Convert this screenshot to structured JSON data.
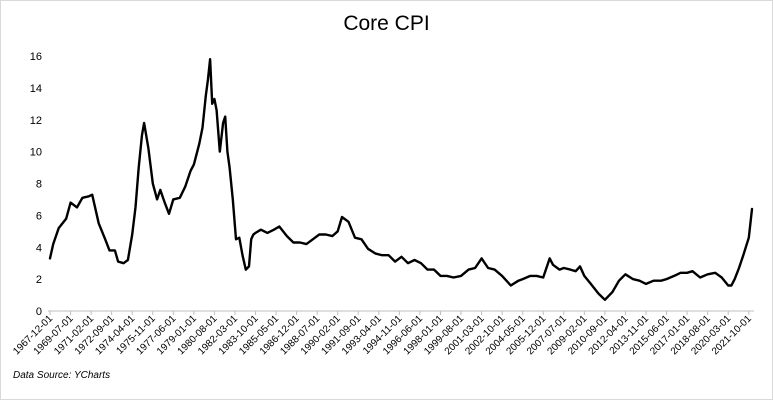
{
  "chart_data": {
    "type": "line",
    "title": "Core CPI",
    "source_note": "Data Source: YCharts",
    "xlabel": "",
    "ylabel": "",
    "ylim": [
      0,
      16
    ],
    "yticks": [
      0,
      2,
      4,
      6,
      8,
      10,
      12,
      14,
      16
    ],
    "grid": false,
    "legend": "none",
    "line_color": "#000000",
    "x_tick_labels": [
      "1967-12-01",
      "1969-07-01",
      "1971-02-01",
      "1972-09-01",
      "1974-04-01",
      "1975-11-01",
      "1977-06-01",
      "1979-01-01",
      "1980-08-01",
      "1982-03-01",
      "1983-10-01",
      "1985-05-01",
      "1986-12-01",
      "1988-07-01",
      "1990-02-01",
      "1991-09-01",
      "1993-04-01",
      "1994-11-01",
      "1996-06-01",
      "1998-01-01",
      "1999-08-01",
      "2001-03-01",
      "2002-10-01",
      "2004-05-01",
      "2005-12-01",
      "2007-07-01",
      "2009-02-01",
      "2010-09-01",
      "2012-04-01",
      "2013-11-01",
      "2015-06-01",
      "2017-01-01",
      "2018-08-01",
      "2020-03-01",
      "2021-10-01"
    ],
    "series": [
      {
        "x": [
          "1967-12-01",
          "1968-03-01",
          "1968-08-01",
          "1969-03-01",
          "1969-07-01",
          "1970-01-01",
          "1970-06-01",
          "1970-12-01",
          "1971-03-01",
          "1971-09-01",
          "1972-03-01",
          "1972-07-01",
          "1972-12-01",
          "1973-03-01",
          "1973-08-01",
          "1973-12-01",
          "1974-04-01",
          "1974-07-01",
          "1974-10-01",
          "1975-01-01",
          "1975-03-01",
          "1975-07-01",
          "1975-11-01",
          "1976-03-01",
          "1976-06-01",
          "1976-10-01",
          "1977-02-01",
          "1977-06-01",
          "1977-12-01",
          "1978-05-01",
          "1978-10-01",
          "1979-01-01",
          "1979-06-01",
          "1979-09-01",
          "1979-12-01",
          "1980-02-01",
          "1980-04-01",
          "1980-06-01",
          "1980-08-01",
          "1980-10-01",
          "1981-01-01",
          "1981-04-01",
          "1981-06-01",
          "1981-08-01",
          "1981-10-01",
          "1982-01-01",
          "1982-04-01",
          "1982-07-01",
          "1982-10-01",
          "1983-01-01",
          "1983-04-01",
          "1983-06-01",
          "1983-08-01",
          "1983-10-01",
          "1984-03-01",
          "1984-09-01",
          "1985-03-01",
          "1985-08-01",
          "1986-03-01",
          "1986-09-01",
          "1987-03-01",
          "1987-09-01",
          "1988-03-01",
          "1988-09-01",
          "1989-03-01",
          "1989-09-01",
          "1990-02-01",
          "1990-06-01",
          "1990-12-01",
          "1991-06-01",
          "1991-12-01",
          "1992-06-01",
          "1993-01-01",
          "1993-07-01",
          "1994-01-01",
          "1994-07-01",
          "1995-01-01",
          "1995-07-01",
          "1996-01-01",
          "1996-07-01",
          "1997-01-01",
          "1997-07-01",
          "1998-01-01",
          "1998-07-01",
          "1999-01-01",
          "1999-08-01",
          "2000-03-01",
          "2000-09-01",
          "2001-03-01",
          "2001-09-01",
          "2002-03-01",
          "2002-10-01",
          "2003-06-01",
          "2004-01-01",
          "2004-05-01",
          "2004-12-01",
          "2005-06-01",
          "2005-12-01",
          "2006-06-01",
          "2006-09-01",
          "2007-03-01",
          "2007-07-01",
          "2008-01-01",
          "2008-06-01",
          "2008-10-01",
          "2009-02-01",
          "2009-08-01",
          "2010-03-01",
          "2010-09-01",
          "2011-04-01",
          "2011-10-01",
          "2012-04-01",
          "2012-11-01",
          "2013-05-01",
          "2013-11-01",
          "2014-06-01",
          "2015-01-01",
          "2015-06-01",
          "2016-01-01",
          "2016-07-01",
          "2017-01-01",
          "2017-06-01",
          "2018-01-01",
          "2018-08-01",
          "2019-03-01",
          "2019-09-01",
          "2020-03-01",
          "2020-06-01",
          "2020-09-01",
          "2021-01-01",
          "2021-05-01",
          "2021-10-01",
          "2022-01-01"
        ],
        "values": [
          3.3,
          4.2,
          5.2,
          5.8,
          6.8,
          6.5,
          7.1,
          7.2,
          7.3,
          5.5,
          4.5,
          3.8,
          3.8,
          3.1,
          3.0,
          3.2,
          4.8,
          6.5,
          9.0,
          11.0,
          11.8,
          10.2,
          8.0,
          7.0,
          7.6,
          6.8,
          6.1,
          7.0,
          7.1,
          7.8,
          8.8,
          9.2,
          10.5,
          11.5,
          13.5,
          14.5,
          15.8,
          13.0,
          13.3,
          12.6,
          10.0,
          11.8,
          12.2,
          10.0,
          9.0,
          7.0,
          4.5,
          4.6,
          3.5,
          2.6,
          2.8,
          4.5,
          4.8,
          4.9,
          5.1,
          4.9,
          5.1,
          5.3,
          4.7,
          4.3,
          4.3,
          4.2,
          4.5,
          4.8,
          4.8,
          4.7,
          5.0,
          5.9,
          5.6,
          4.6,
          4.5,
          3.9,
          3.6,
          3.5,
          3.5,
          3.1,
          3.4,
          3.0,
          3.2,
          3.0,
          2.6,
          2.6,
          2.2,
          2.2,
          2.1,
          2.2,
          2.6,
          2.7,
          3.3,
          2.7,
          2.6,
          2.2,
          1.6,
          1.9,
          2.0,
          2.2,
          2.2,
          2.1,
          3.3,
          2.9,
          2.6,
          2.7,
          2.6,
          2.5,
          2.8,
          2.2,
          1.7,
          1.1,
          0.7,
          1.2,
          1.9,
          2.3,
          2.0,
          1.9,
          1.7,
          1.9,
          1.9,
          2.0,
          2.2,
          2.4,
          2.4,
          2.5,
          2.1,
          2.3,
          2.4,
          2.1,
          1.6,
          1.6,
          2.0,
          2.7,
          3.5,
          4.6,
          6.4
        ]
      }
    ]
  }
}
